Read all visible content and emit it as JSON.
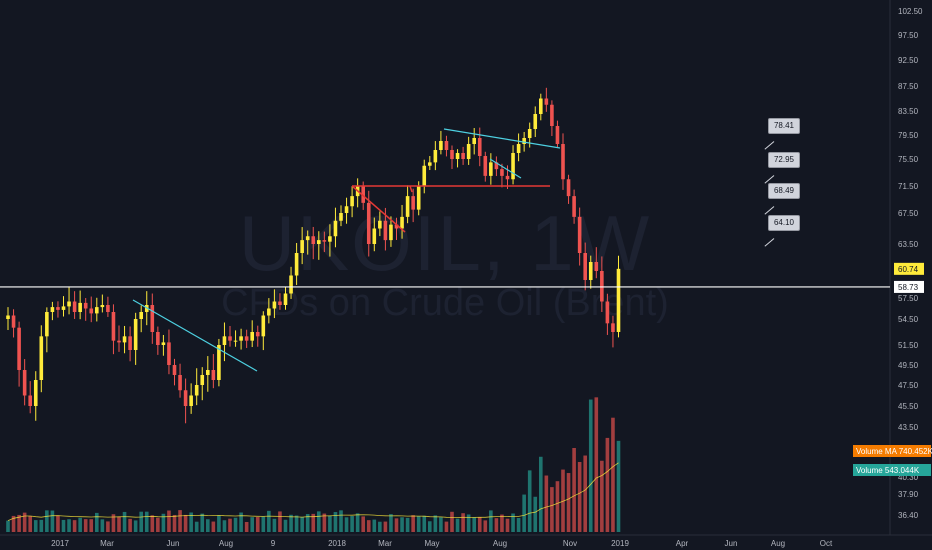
{
  "watermark": {
    "symbol": "UKOIL, 1W",
    "description": "CFDs on Crude Oil (Brent)"
  },
  "annotations": [
    "78.41",
    "72.95",
    "68.49",
    "64.10"
  ],
  "price_labels": [
    {
      "text": "60.74",
      "price": 60.74,
      "bg": "#ffeb3b",
      "fg": "#131722"
    },
    {
      "text": "58.73",
      "price": 58.73,
      "bg": "#ffffff",
      "fg": "#131722"
    }
  ],
  "volume_labels": [
    {
      "name": "Volume MA",
      "value": "740.452K",
      "bg": "#f57c00",
      "y": 451
    },
    {
      "name": "Volume",
      "value": "543.044K",
      "bg": "#26a69a",
      "y": 470
    }
  ],
  "colors": {
    "up": "#ffeb3b",
    "down": "#ef5350",
    "bg": "#131722",
    "trend": "#4dd0e1",
    "level": "#e53935",
    "hline": "#ffffff"
  },
  "chart_data": {
    "type": "candlestick",
    "title": "UKOIL, 1W",
    "subtitle": "CFDs on Crude Oil (Brent)",
    "y_ticks": [
      102.5,
      97.5,
      92.5,
      87.5,
      83.5,
      79.5,
      75.5,
      71.5,
      67.5,
      63.5,
      57.5,
      54.5,
      51.5,
      49.5,
      47.5,
      45.5,
      43.5,
      40.3,
      37.9,
      36.4
    ],
    "x_ticks": [
      "2017",
      "Mar",
      "Jun",
      "Aug",
      "9",
      "2018",
      "Mar",
      "May",
      "Aug",
      "Nov",
      "2019",
      "Apr",
      "Jun",
      "Aug",
      "Oct"
    ],
    "horizontal_line": 58.73,
    "last_price": 60.74,
    "candles_close": [
      55.0,
      53.5,
      49.0,
      46.5,
      45.5,
      48.0,
      52.5,
      55.5,
      56.2,
      55.8,
      56.3,
      57.0,
      55.5,
      56.8,
      56.0,
      55.3,
      56.2,
      56.5,
      55.5,
      52.0,
      51.8,
      52.5,
      51.0,
      54.5,
      55.5,
      56.5,
      53.0,
      51.5,
      51.8,
      49.5,
      48.5,
      47.0,
      45.5,
      46.5,
      47.5,
      48.5,
      49.0,
      48.0,
      51.5,
      52.5,
      52.0,
      52.0,
      52.5,
      52.0,
      53.0,
      52.5,
      55.0,
      56.0,
      57.0,
      56.5,
      58.0,
      60.0,
      62.5,
      64.0,
      64.5,
      63.5,
      64.0,
      63.8,
      64.5,
      66.5,
      67.5,
      68.5,
      70.0,
      71.5,
      69.0,
      63.5,
      65.5,
      66.5,
      64.0,
      66.0,
      65.5,
      67.0,
      70.0,
      68.0,
      71.5,
      74.5,
      75.0,
      77.0,
      78.5,
      77.0,
      75.5,
      76.5,
      75.5,
      78.0,
      79.0,
      76.0,
      73.0,
      75.0,
      74.0,
      73.0,
      72.5,
      76.5,
      78.0,
      79.0,
      80.5,
      83.0,
      85.5,
      84.5,
      81.0,
      78.0,
      72.5,
      70.0,
      67.0,
      62.5,
      59.5,
      61.5,
      60.5,
      57.0,
      54.0,
      53.0,
      60.74
    ],
    "volume_ma_label": "Volume MA 740.452K",
    "volume_label": "Volume 543.044K",
    "trendlines": "cyan descending lines on 2017 decline, 2018 top flag; red horizontal level near 71.5"
  }
}
